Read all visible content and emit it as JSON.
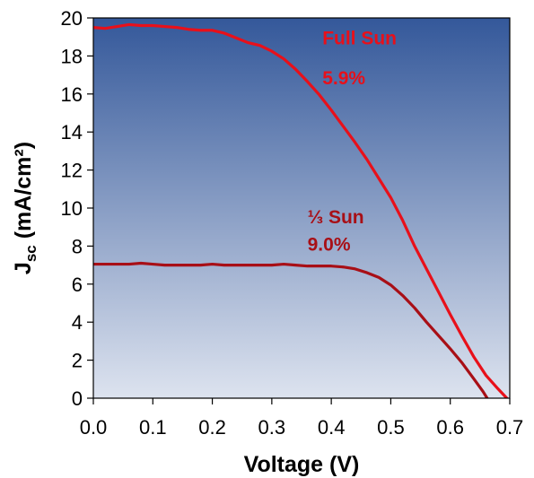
{
  "chart_data": {
    "type": "line",
    "xlabel": "Voltage (V)",
    "ylabel_main": "J",
    "ylabel_sub": "sc",
    "ylabel_units": " (mA/cm²)",
    "xlim": [
      0,
      0.7
    ],
    "ylim": [
      0,
      20
    ],
    "x_ticks": [
      0.0,
      0.1,
      0.2,
      0.3,
      0.4,
      0.5,
      0.6,
      0.7
    ],
    "x_tick_labels": [
      "0.0",
      "0.1",
      "0.2",
      "0.3",
      "0.4",
      "0.5",
      "0.6",
      "0.7"
    ],
    "y_ticks": [
      0,
      2,
      4,
      6,
      8,
      10,
      12,
      14,
      16,
      18,
      20
    ],
    "y_tick_labels": [
      "0",
      "2",
      "4",
      "6",
      "8",
      "10",
      "12",
      "14",
      "16",
      "18",
      "20"
    ],
    "grid": false,
    "background_gradient": [
      "#34589a",
      "#dde3ef"
    ],
    "series": [
      {
        "color": "#e8101a",
        "points": [
          [
            0.0,
            19.5
          ],
          [
            0.02,
            19.45
          ],
          [
            0.04,
            19.55
          ],
          [
            0.06,
            19.65
          ],
          [
            0.08,
            19.6
          ],
          [
            0.1,
            19.6
          ],
          [
            0.12,
            19.55
          ],
          [
            0.14,
            19.5
          ],
          [
            0.16,
            19.4
          ],
          [
            0.18,
            19.35
          ],
          [
            0.2,
            19.35
          ],
          [
            0.22,
            19.2
          ],
          [
            0.24,
            18.95
          ],
          [
            0.26,
            18.7
          ],
          [
            0.28,
            18.55
          ],
          [
            0.3,
            18.25
          ],
          [
            0.32,
            17.85
          ],
          [
            0.34,
            17.3
          ],
          [
            0.36,
            16.65
          ],
          [
            0.38,
            15.95
          ],
          [
            0.4,
            15.15
          ],
          [
            0.42,
            14.3
          ],
          [
            0.44,
            13.45
          ],
          [
            0.46,
            12.55
          ],
          [
            0.48,
            11.55
          ],
          [
            0.5,
            10.55
          ],
          [
            0.52,
            9.35
          ],
          [
            0.54,
            8.0
          ],
          [
            0.56,
            6.8
          ],
          [
            0.58,
            5.6
          ],
          [
            0.6,
            4.4
          ],
          [
            0.62,
            3.25
          ],
          [
            0.64,
            2.15
          ],
          [
            0.66,
            1.2
          ],
          [
            0.68,
            0.5
          ],
          [
            0.695,
            0.0
          ]
        ]
      },
      {
        "color": "#a80f16",
        "points": [
          [
            0.0,
            7.05
          ],
          [
            0.02,
            7.05
          ],
          [
            0.04,
            7.05
          ],
          [
            0.06,
            7.05
          ],
          [
            0.08,
            7.1
          ],
          [
            0.1,
            7.05
          ],
          [
            0.12,
            7.0
          ],
          [
            0.14,
            7.0
          ],
          [
            0.16,
            7.0
          ],
          [
            0.18,
            7.0
          ],
          [
            0.2,
            7.05
          ],
          [
            0.22,
            7.0
          ],
          [
            0.24,
            7.0
          ],
          [
            0.26,
            7.0
          ],
          [
            0.28,
            7.0
          ],
          [
            0.3,
            7.0
          ],
          [
            0.32,
            7.05
          ],
          [
            0.34,
            7.0
          ],
          [
            0.36,
            6.95
          ],
          [
            0.38,
            6.95
          ],
          [
            0.4,
            6.95
          ],
          [
            0.42,
            6.9
          ],
          [
            0.44,
            6.8
          ],
          [
            0.46,
            6.6
          ],
          [
            0.48,
            6.35
          ],
          [
            0.5,
            5.95
          ],
          [
            0.52,
            5.4
          ],
          [
            0.54,
            4.75
          ],
          [
            0.56,
            4.0
          ],
          [
            0.58,
            3.3
          ],
          [
            0.6,
            2.6
          ],
          [
            0.62,
            1.85
          ],
          [
            0.64,
            1.0
          ],
          [
            0.655,
            0.35
          ],
          [
            0.662,
            0.0
          ]
        ]
      }
    ],
    "annotations": [
      {
        "text": "Full Sun",
        "x": 0.385,
        "y": 18.6,
        "color": "#e8101a"
      },
      {
        "text": "5.9%",
        "x": 0.385,
        "y": 16.5,
        "color": "#e8101a"
      },
      {
        "text": "⅓ Sun",
        "x": 0.36,
        "y": 9.2,
        "color": "#a80f16"
      },
      {
        "text": "9.0%",
        "x": 0.36,
        "y": 7.75,
        "color": "#a80f16"
      }
    ]
  }
}
